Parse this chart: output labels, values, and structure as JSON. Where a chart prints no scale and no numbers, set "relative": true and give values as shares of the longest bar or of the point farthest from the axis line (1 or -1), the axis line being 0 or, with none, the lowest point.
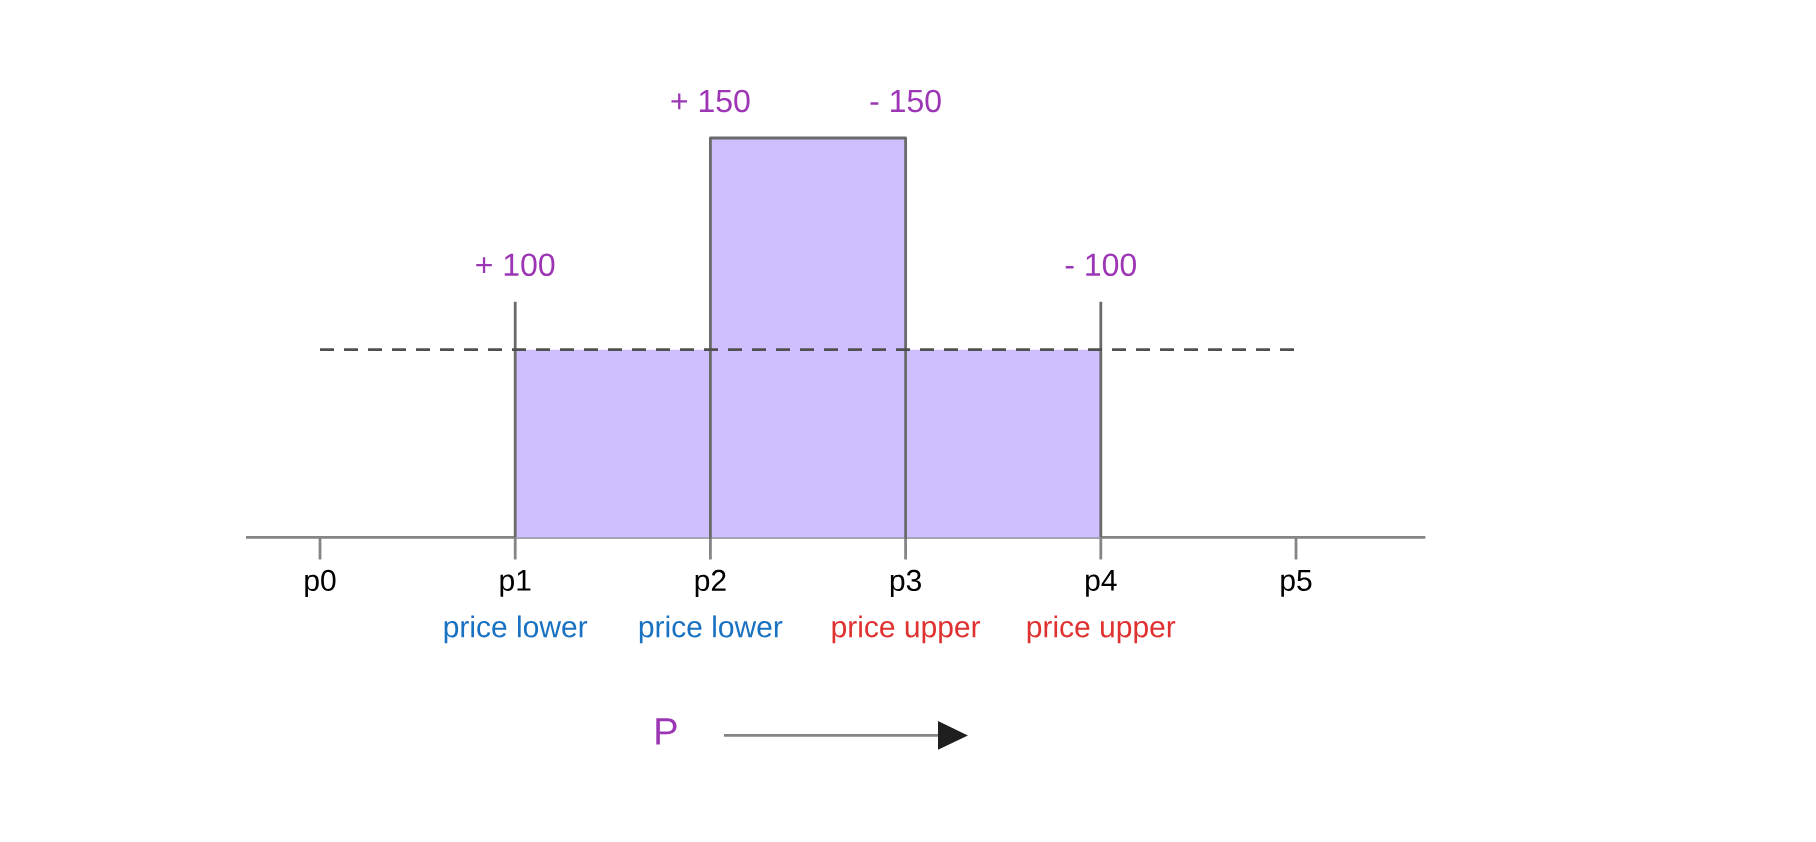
{
  "chart_data": {
    "type": "area",
    "relative": true,
    "xlabel": "P",
    "categories": [
      "p0",
      "p1",
      "p2",
      "p3",
      "p4",
      "p5"
    ],
    "series": [
      {
        "color": "#d0bfff",
        "x": [
          "p1",
          "p1",
          "p2",
          "p2",
          "p3",
          "p3",
          "p4",
          "p4"
        ],
        "values": [
          0,
          0.47,
          0.47,
          1,
          1,
          0.47,
          0.47,
          0
        ]
      },
      {
        "type": "bar",
        "color": "#6a6a6a",
        "values": [
          null,
          0.59,
          null,
          null,
          0.59,
          null
        ]
      },
      {
        "type": "line",
        "color": "#6a6a6a",
        "x": [
          "p2",
          "p2",
          "p3",
          "p3"
        ],
        "values": [
          0,
          1,
          1,
          0
        ]
      }
    ],
    "ref_lines": [
      {
        "axis": "y",
        "value": 0.47,
        "color": "#505050",
        "line_style": "dashed"
      }
    ],
    "annotations": [
      {
        "text": "+ 100",
        "x": "p1",
        "y": 0.59
      },
      {
        "text": "+ 150",
        "x": "p2",
        "y": 1
      },
      {
        "text": "- 150",
        "x": "p3",
        "y": 1
      },
      {
        "text": "- 100",
        "x": "p4",
        "y": 0.59
      },
      {
        "text": "price lower",
        "x": "p1",
        "y": 0
      },
      {
        "text": "price lower",
        "x": "p2",
        "y": 0
      },
      {
        "text": "price upper",
        "x": "p3",
        "y": 0
      },
      {
        "text": "price upper",
        "x": "p4",
        "y": 0
      }
    ]
  }
}
